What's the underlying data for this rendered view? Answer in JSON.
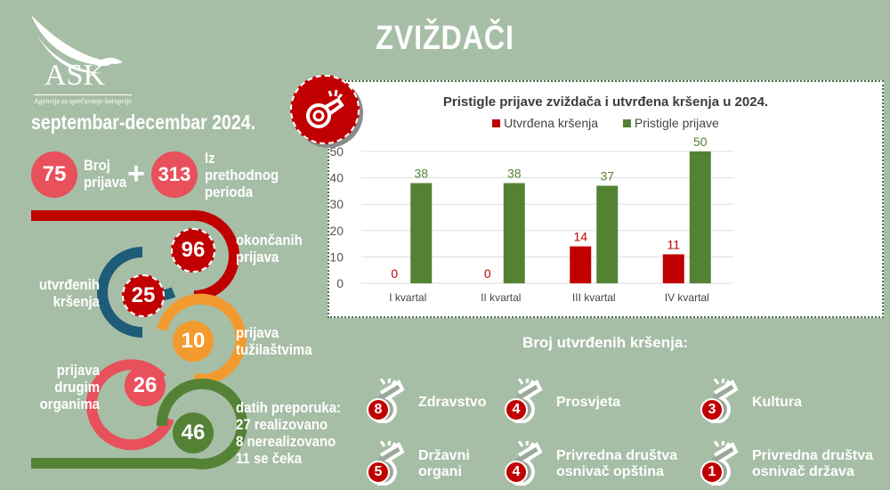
{
  "logo": {
    "text": "ASK",
    "subtitle": "Agencija za sprečavanje korupcije"
  },
  "title": "ZVIŽDAČI",
  "period": "septembar-decembar 2024.",
  "counts": {
    "reports": "75",
    "reports_label": "Broj prijava",
    "plus": "+",
    "previous": "313",
    "previous_label": "Iz prethodnog perioda"
  },
  "flow": [
    {
      "value": "96",
      "label": "okončanih prijava",
      "color": "#c00000"
    },
    {
      "value": "25",
      "label": "utvrđenih kršenja",
      "color": "#1f5c7a"
    },
    {
      "value": "10",
      "label": "prijava tužilaštvima",
      "color": "#f39a2e"
    },
    {
      "value": "26",
      "label": "prijava drugim organima",
      "color": "#e8505b"
    },
    {
      "value": "46",
      "label": "datih preporuka:",
      "details": [
        "27 realizovano",
        "8 nerealizovano",
        "11 se čeka"
      ],
      "color": "#548235"
    }
  ],
  "chart_data": {
    "type": "bar",
    "title": "Pristigle prijave zviždača i utvrđena kršenja u 2024.",
    "categories": [
      "I kvartal",
      "II kvartal",
      "III kvartal",
      "IV kvartal"
    ],
    "series": [
      {
        "name": "Utvrđena kršenja",
        "values": [
          0,
          0,
          14,
          11
        ],
        "color": "#c00000"
      },
      {
        "name": "Pristigle prijave",
        "values": [
          38,
          38,
          37,
          50
        ],
        "color": "#548235"
      }
    ],
    "ylim": [
      0,
      50
    ],
    "yticks": [
      0,
      10,
      20,
      30,
      40,
      50
    ],
    "grid": true,
    "legend": "top"
  },
  "violations": {
    "title": "Broj utvrđenih kršenja:",
    "items": [
      {
        "value": "8",
        "label": [
          "Zdravstvo"
        ]
      },
      {
        "value": "4",
        "label": [
          "Prosvjeta"
        ]
      },
      {
        "value": "3",
        "label": [
          "Kultura"
        ]
      },
      {
        "value": "5",
        "label": [
          "Državni",
          "organi"
        ]
      },
      {
        "value": "4",
        "label": [
          "Privredna društva",
          "osnivač opština"
        ]
      },
      {
        "value": "1",
        "label": [
          "Privredna društva",
          "osnivač država"
        ]
      }
    ]
  }
}
